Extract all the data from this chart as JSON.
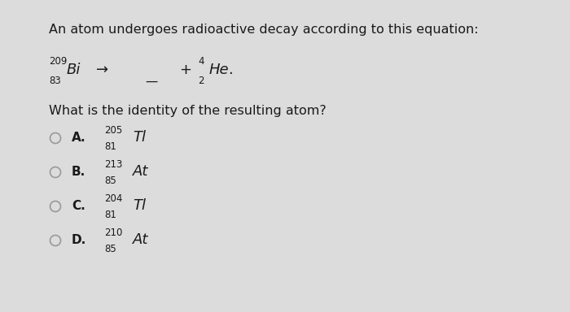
{
  "background_color": "#dcdcdc",
  "title_text": "An atom undergoes radioactive decay according to this equation:",
  "equation": {
    "bi_mass": "209",
    "bi_atomic": "83",
    "bi_symbol": "Bi",
    "arrow": "→",
    "plus": "+",
    "he_mass": "4",
    "he_atomic": "2",
    "he_symbol": "He"
  },
  "question": "What is the identity of the resulting atom?",
  "options": [
    {
      "label": "A.",
      "mass": "205",
      "symbol": "Tl",
      "atomic": "81"
    },
    {
      "label": "B.",
      "mass": "213",
      "symbol": "At",
      "atomic": "85"
    },
    {
      "label": "C.",
      "mass": "204",
      "symbol": "Tl",
      "atomic": "81"
    },
    {
      "label": "D.",
      "mass": "210",
      "symbol": "At",
      "atomic": "85"
    }
  ],
  "text_color": "#1a1a1a",
  "circle_color": "#999999",
  "fs_title": 11.5,
  "fs_symbol": 13,
  "fs_small": 8.5,
  "fs_option_label": 11,
  "fs_option_symbol": 13,
  "fs_option_small": 8.5
}
